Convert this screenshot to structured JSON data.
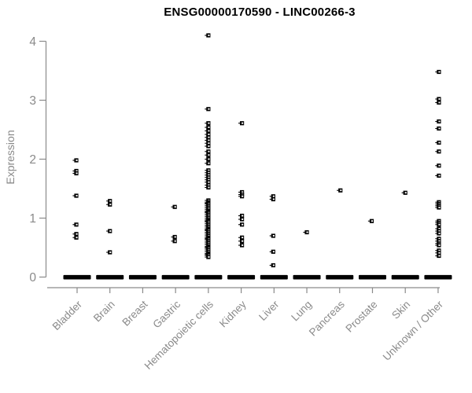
{
  "title": "ENSG00000170590 - LINC00266-3",
  "chart_data": {
    "type": "scatter",
    "title": "ENSG00000170590 - LINC00266-3",
    "xlabel": "",
    "ylabel": "Expression",
    "ylim": [
      0,
      4.3
    ],
    "yticks": [
      0,
      1,
      2,
      3,
      4
    ],
    "grid": false,
    "legend": null,
    "marker": "small-black-open-square",
    "colors": {
      "points": "#000000",
      "axis_line": "#8a8a8a",
      "axis_text": "#8a8a8a",
      "title_text": "#000000",
      "background": "#ffffff"
    },
    "categories": [
      "Bladder",
      "Brain",
      "Breast",
      "Gastric",
      "Hematopoietic cells",
      "Kidney",
      "Liver",
      "Lung",
      "Pancreas",
      "Prostate",
      "Skin",
      "Unknown / Other"
    ],
    "series": [
      {
        "name": "Bladder",
        "zero_cluster": true,
        "values": [
          1.98,
          1.8,
          1.76,
          1.38,
          0.89,
          0.73,
          0.67
        ]
      },
      {
        "name": "Brain",
        "zero_cluster": true,
        "values": [
          1.29,
          1.23,
          0.78,
          0.42
        ]
      },
      {
        "name": "Breast",
        "zero_cluster": true,
        "values": []
      },
      {
        "name": "Gastric",
        "zero_cluster": true,
        "values": [
          1.19,
          0.68,
          0.61
        ]
      },
      {
        "name": "Hematopoietic cells",
        "zero_cluster": true,
        "values": [
          4.1,
          2.85,
          2.61,
          2.54,
          2.48,
          2.42,
          2.37,
          2.32,
          2.27,
          2.22,
          2.13,
          2.07,
          2.0,
          1.93,
          1.81,
          1.77,
          1.73,
          1.69,
          1.65,
          1.61,
          1.56,
          1.52,
          1.3,
          1.27,
          1.25,
          1.24,
          1.21,
          1.18,
          1.15,
          1.12,
          1.1,
          1.09,
          1.06,
          1.03,
          1.0,
          0.97,
          0.95,
          0.94,
          0.91,
          0.88,
          0.85,
          0.82,
          0.8,
          0.79,
          0.76,
          0.73,
          0.7,
          0.67,
          0.65,
          0.64,
          0.61,
          0.58,
          0.55,
          0.52,
          0.5,
          0.49,
          0.46,
          0.43,
          0.4,
          0.38,
          0.37,
          0.34
        ]
      },
      {
        "name": "Kidney",
        "zero_cluster": true,
        "values": [
          2.61,
          1.44,
          1.4,
          1.37,
          1.04,
          0.98,
          0.89,
          0.67,
          0.61,
          0.54
        ]
      },
      {
        "name": "Liver",
        "zero_cluster": true,
        "values": [
          1.37,
          1.32,
          0.7,
          0.43,
          0.2
        ]
      },
      {
        "name": "Lung",
        "zero_cluster": true,
        "values": [
          0.76
        ]
      },
      {
        "name": "Pancreas",
        "zero_cluster": true,
        "values": [
          1.47
        ]
      },
      {
        "name": "Prostate",
        "zero_cluster": true,
        "values": [
          0.95
        ]
      },
      {
        "name": "Skin",
        "zero_cluster": true,
        "values": [
          1.43
        ]
      },
      {
        "name": "Unknown / Other",
        "zero_cluster": true,
        "values": [
          3.48,
          3.02,
          2.96,
          2.64,
          2.52,
          2.28,
          2.13,
          1.89,
          1.72,
          1.27,
          1.24,
          1.21,
          1.18,
          0.95,
          0.92,
          0.89,
          0.82,
          0.78,
          0.74,
          0.65,
          0.61,
          0.57,
          0.54,
          0.45,
          0.41,
          0.36
        ]
      }
    ]
  }
}
